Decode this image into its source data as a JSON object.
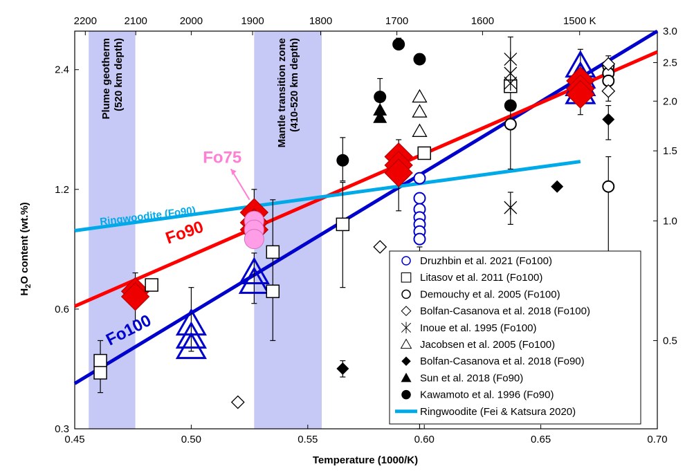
{
  "chart_data": {
    "type": "scatter",
    "xlabel": "Temperature (1000/K)",
    "ylabel_main": "H",
    "ylabel_sub": "2",
    "ylabel_rest": "O content (wt.%)",
    "xlim": [
      0.45,
      0.7
    ],
    "ylim": [
      0.3,
      3.0
    ],
    "y_scale": "log",
    "x_ticks": [
      "0.45",
      "0.50",
      "0.55",
      "0.60",
      "0.65",
      "0.70"
    ],
    "x_tick_values": [
      0.45,
      0.5,
      0.55,
      0.6,
      0.65,
      0.7
    ],
    "y_ticks_left": [
      "0.3",
      "0.6",
      "1.2",
      "2.4"
    ],
    "y_tick_left_values": [
      0.3,
      0.6,
      1.2,
      2.4
    ],
    "y_ticks_right": [
      "0.5",
      "1.0",
      "1.5",
      "2.0",
      "2.5",
      "3.0"
    ],
    "y_tick_right_values": [
      0.5,
      1.0,
      1.5,
      2.0,
      2.5,
      3.0
    ],
    "top_ticks": [
      "2200",
      "2100",
      "2000",
      "1900",
      "1800",
      "1700",
      "1600",
      "1500 K"
    ],
    "top_tick_kelvin": [
      2200,
      2100,
      2000,
      1900,
      1800,
      1700,
      1600,
      1500
    ],
    "bands": [
      {
        "x0": 0.456,
        "x1": 0.476,
        "label1": "Plume geotherm",
        "label2": "(520 km depth)"
      },
      {
        "x0": 0.527,
        "x1": 0.556,
        "label1": "Mantle transition zone",
        "label2": "(410-520 km depth)"
      }
    ],
    "fit_lines": [
      {
        "name": "Fo100",
        "color": "#0000cc",
        "x": [
          0.45,
          0.7
        ],
        "y": [
          0.39,
          3.0
        ]
      },
      {
        "name": "Fo90",
        "color": "#ff0000",
        "x": [
          0.45,
          0.7
        ],
        "y": [
          0.61,
          2.66
        ]
      },
      {
        "name": "Ringwoodite (Fo90)",
        "color": "#00a9e8",
        "x": [
          0.45,
          0.667
        ],
        "y": [
          0.945,
          1.41
        ]
      }
    ],
    "annotations": [
      {
        "text": "Fo100",
        "x": 0.465,
        "y": 0.485,
        "color": "#0000cc",
        "rotate": -27
      },
      {
        "text": "Fo90",
        "x": 0.49,
        "y": 0.875,
        "color": "#ff0000",
        "rotate": -19
      },
      {
        "text": "Ringwoodite (Fo90)",
        "x": 0.461,
        "y": 0.975,
        "color": "#00a9e8",
        "rotate": -7
      },
      {
        "text": "Fo75",
        "x": 0.505,
        "y": 1.4,
        "color": "#ff7fd4",
        "rotate": 0
      }
    ],
    "series": [
      {
        "name": "Druzhbin et al. 2021 (Fo100)",
        "marker": "circle-open",
        "color": "#0000cc",
        "points": [
          [
            0.598,
            1.28
          ],
          [
            0.598,
            1.14
          ],
          [
            0.598,
            1.07
          ],
          [
            0.598,
            1.02
          ],
          [
            0.598,
            0.98
          ],
          [
            0.598,
            0.94
          ],
          [
            0.598,
            0.9
          ]
        ]
      },
      {
        "name": "Litasov et al. 2011 (Fo100)",
        "marker": "square-open",
        "color": "#000000",
        "points": [
          [
            0.461,
            0.445
          ],
          [
            0.461,
            0.415
          ],
          [
            0.483,
            0.69
          ],
          [
            0.535,
            0.835
          ],
          [
            0.535,
            0.665
          ],
          [
            0.565,
            0.98
          ],
          [
            0.6,
            1.48
          ],
          [
            0.637,
            2.18
          ]
        ]
      },
      {
        "name": "Demouchy et al. 2005 (Fo100)",
        "marker": "circle-open",
        "color": "#000000",
        "points": [
          [
            0.637,
            1.75
          ],
          [
            0.679,
            2.45
          ],
          [
            0.679,
            2.35
          ],
          [
            0.679,
            2.25
          ],
          [
            0.679,
            1.22
          ]
        ]
      },
      {
        "name": "Bolfan-Casanova et al. 2018 (Fo100)",
        "marker": "diamond-open",
        "color": "#000000",
        "points": [
          [
            0.52,
            0.35
          ],
          [
            0.581,
            0.86
          ],
          [
            0.679,
            2.48
          ],
          [
            0.679,
            2.12
          ]
        ]
      },
      {
        "name": "Inoue et al. 1995 (Fo100)",
        "marker": "star",
        "color": "#000000",
        "points": [
          [
            0.637,
            2.55
          ],
          [
            0.637,
            2.35
          ],
          [
            0.637,
            2.22
          ],
          [
            0.637,
            1.08
          ]
        ]
      },
      {
        "name": "Jacobsen et al. 2005 (Fo100)",
        "marker": "triangle-open",
        "color": "#000000",
        "points": [
          [
            0.598,
            2.05
          ],
          [
            0.598,
            1.88
          ],
          [
            0.598,
            1.68
          ]
        ]
      },
      {
        "name": "Bolfan-Casanova et al. 2018 (Fo90)",
        "marker": "diamond-filled",
        "color": "#000000",
        "points": [
          [
            0.565,
            0.425
          ],
          [
            0.657,
            1.22
          ],
          [
            0.679,
            1.8
          ]
        ]
      },
      {
        "name": "Sun et al. 2018 (Fo90)",
        "marker": "triangle-filled",
        "color": "#000000",
        "points": [
          [
            0.581,
            1.9
          ],
          [
            0.581,
            1.82
          ]
        ]
      },
      {
        "name": "Kawamoto et al. 1996 (Fo90)",
        "marker": "circle-filled",
        "color": "#000000",
        "points": [
          [
            0.565,
            1.42
          ],
          [
            0.581,
            2.05
          ],
          [
            0.589,
            2.78
          ],
          [
            0.598,
            2.55
          ],
          [
            0.637,
            1.95
          ]
        ]
      },
      {
        "name": "This study Fo100",
        "marker": "triangle-open",
        "color": "#0000cc",
        "legend": false,
        "points": [
          [
            0.5,
            0.55
          ],
          [
            0.5,
            0.51
          ],
          [
            0.5,
            0.48
          ],
          [
            0.527,
            0.74
          ],
          [
            0.527,
            0.7
          ],
          [
            0.667,
            2.45
          ],
          [
            0.667,
            2.3
          ],
          [
            0.667,
            2.2
          ],
          [
            0.667,
            2.1
          ]
        ]
      },
      {
        "name": "This study Fo90",
        "marker": "diamond-big",
        "color": "#ee0000",
        "legend": false,
        "points": [
          [
            0.476,
            0.665
          ],
          [
            0.476,
            0.645
          ],
          [
            0.527,
            1.05
          ],
          [
            0.527,
            0.99
          ],
          [
            0.527,
            0.95
          ],
          [
            0.589,
            1.45
          ],
          [
            0.589,
            1.38
          ],
          [
            0.589,
            1.32
          ],
          [
            0.667,
            2.25
          ],
          [
            0.667,
            2.15
          ],
          [
            0.667,
            2.08
          ]
        ]
      },
      {
        "name": "This study Fo75",
        "marker": "circle-pink",
        "color": "#ff9ee6",
        "legend": false,
        "points": [
          [
            0.527,
            1.0
          ],
          [
            0.527,
            0.95
          ],
          [
            0.527,
            0.9
          ]
        ]
      }
    ],
    "error_bars": [
      {
        "x": 0.461,
        "y0": 0.37,
        "y1": 0.5
      },
      {
        "x": 0.476,
        "y0": 0.56,
        "y1": 0.74
      },
      {
        "x": 0.5,
        "y0": 0.47,
        "y1": 0.68
      },
      {
        "x": 0.527,
        "y0": 0.62,
        "y1": 0.83
      },
      {
        "x": 0.527,
        "y0": 0.88,
        "y1": 1.2
      },
      {
        "x": 0.535,
        "y0": 0.5,
        "y1": 1.13
      },
      {
        "x": 0.565,
        "y0": 0.68,
        "y1": 1.25
      },
      {
        "x": 0.565,
        "y0": 1.26,
        "y1": 1.62
      },
      {
        "x": 0.565,
        "y0": 0.405,
        "y1": 0.445
      },
      {
        "x": 0.581,
        "y0": 1.85,
        "y1": 2.28
      },
      {
        "x": 0.589,
        "y0": 1.06,
        "y1": 1.6
      },
      {
        "x": 0.589,
        "y0": 2.7,
        "y1": 2.88
      },
      {
        "x": 0.598,
        "y0": 2.5,
        "y1": 2.63
      },
      {
        "x": 0.598,
        "y0": 0.3,
        "y1": 0.86
      },
      {
        "x": 0.637,
        "y0": 1.35,
        "y1": 2.9
      },
      {
        "x": 0.637,
        "y0": 0.98,
        "y1": 1.18
      },
      {
        "x": 0.667,
        "y0": 1.85,
        "y1": 2.7
      },
      {
        "x": 0.679,
        "y0": 1.6,
        "y1": 1.95
      },
      {
        "x": 0.679,
        "y0": 0.82,
        "y1": 1.45
      },
      {
        "x": 0.679,
        "y0": 2.0,
        "y1": 2.6
      }
    ],
    "legend": {
      "position": "bottom-right",
      "entries": [
        {
          "label": "Druzhbin et al. 2021 (Fo100)",
          "marker": "circle-open",
          "color": "#0000cc"
        },
        {
          "label": "Litasov et al. 2011 (Fo100)",
          "marker": "square-open",
          "color": "#000000"
        },
        {
          "label": "Demouchy et al. 2005 (Fo100)",
          "marker": "circle-open",
          "color": "#000000"
        },
        {
          "label": "Bolfan-Casanova et al. 2018 (Fo100)",
          "marker": "diamond-open",
          "color": "#000000"
        },
        {
          "label": "Inoue et al. 1995 (Fo100)",
          "marker": "star",
          "color": "#000000"
        },
        {
          "label": "Jacobsen et al. 2005 (Fo100)",
          "marker": "triangle-open",
          "color": "#000000"
        },
        {
          "label": "Bolfan-Casanova et al. 2018 (Fo90)",
          "marker": "diamond-filled",
          "color": "#000000"
        },
        {
          "label": "Sun et al. 2018 (Fo90)",
          "marker": "triangle-filled",
          "color": "#000000"
        },
        {
          "label": "Kawamoto et al. 1996 (Fo90)",
          "marker": "circle-filled",
          "color": "#000000"
        },
        {
          "label": "Ringwoodite (Fei & Katsura 2020)",
          "marker": "line",
          "color": "#00a9e8"
        }
      ]
    }
  }
}
